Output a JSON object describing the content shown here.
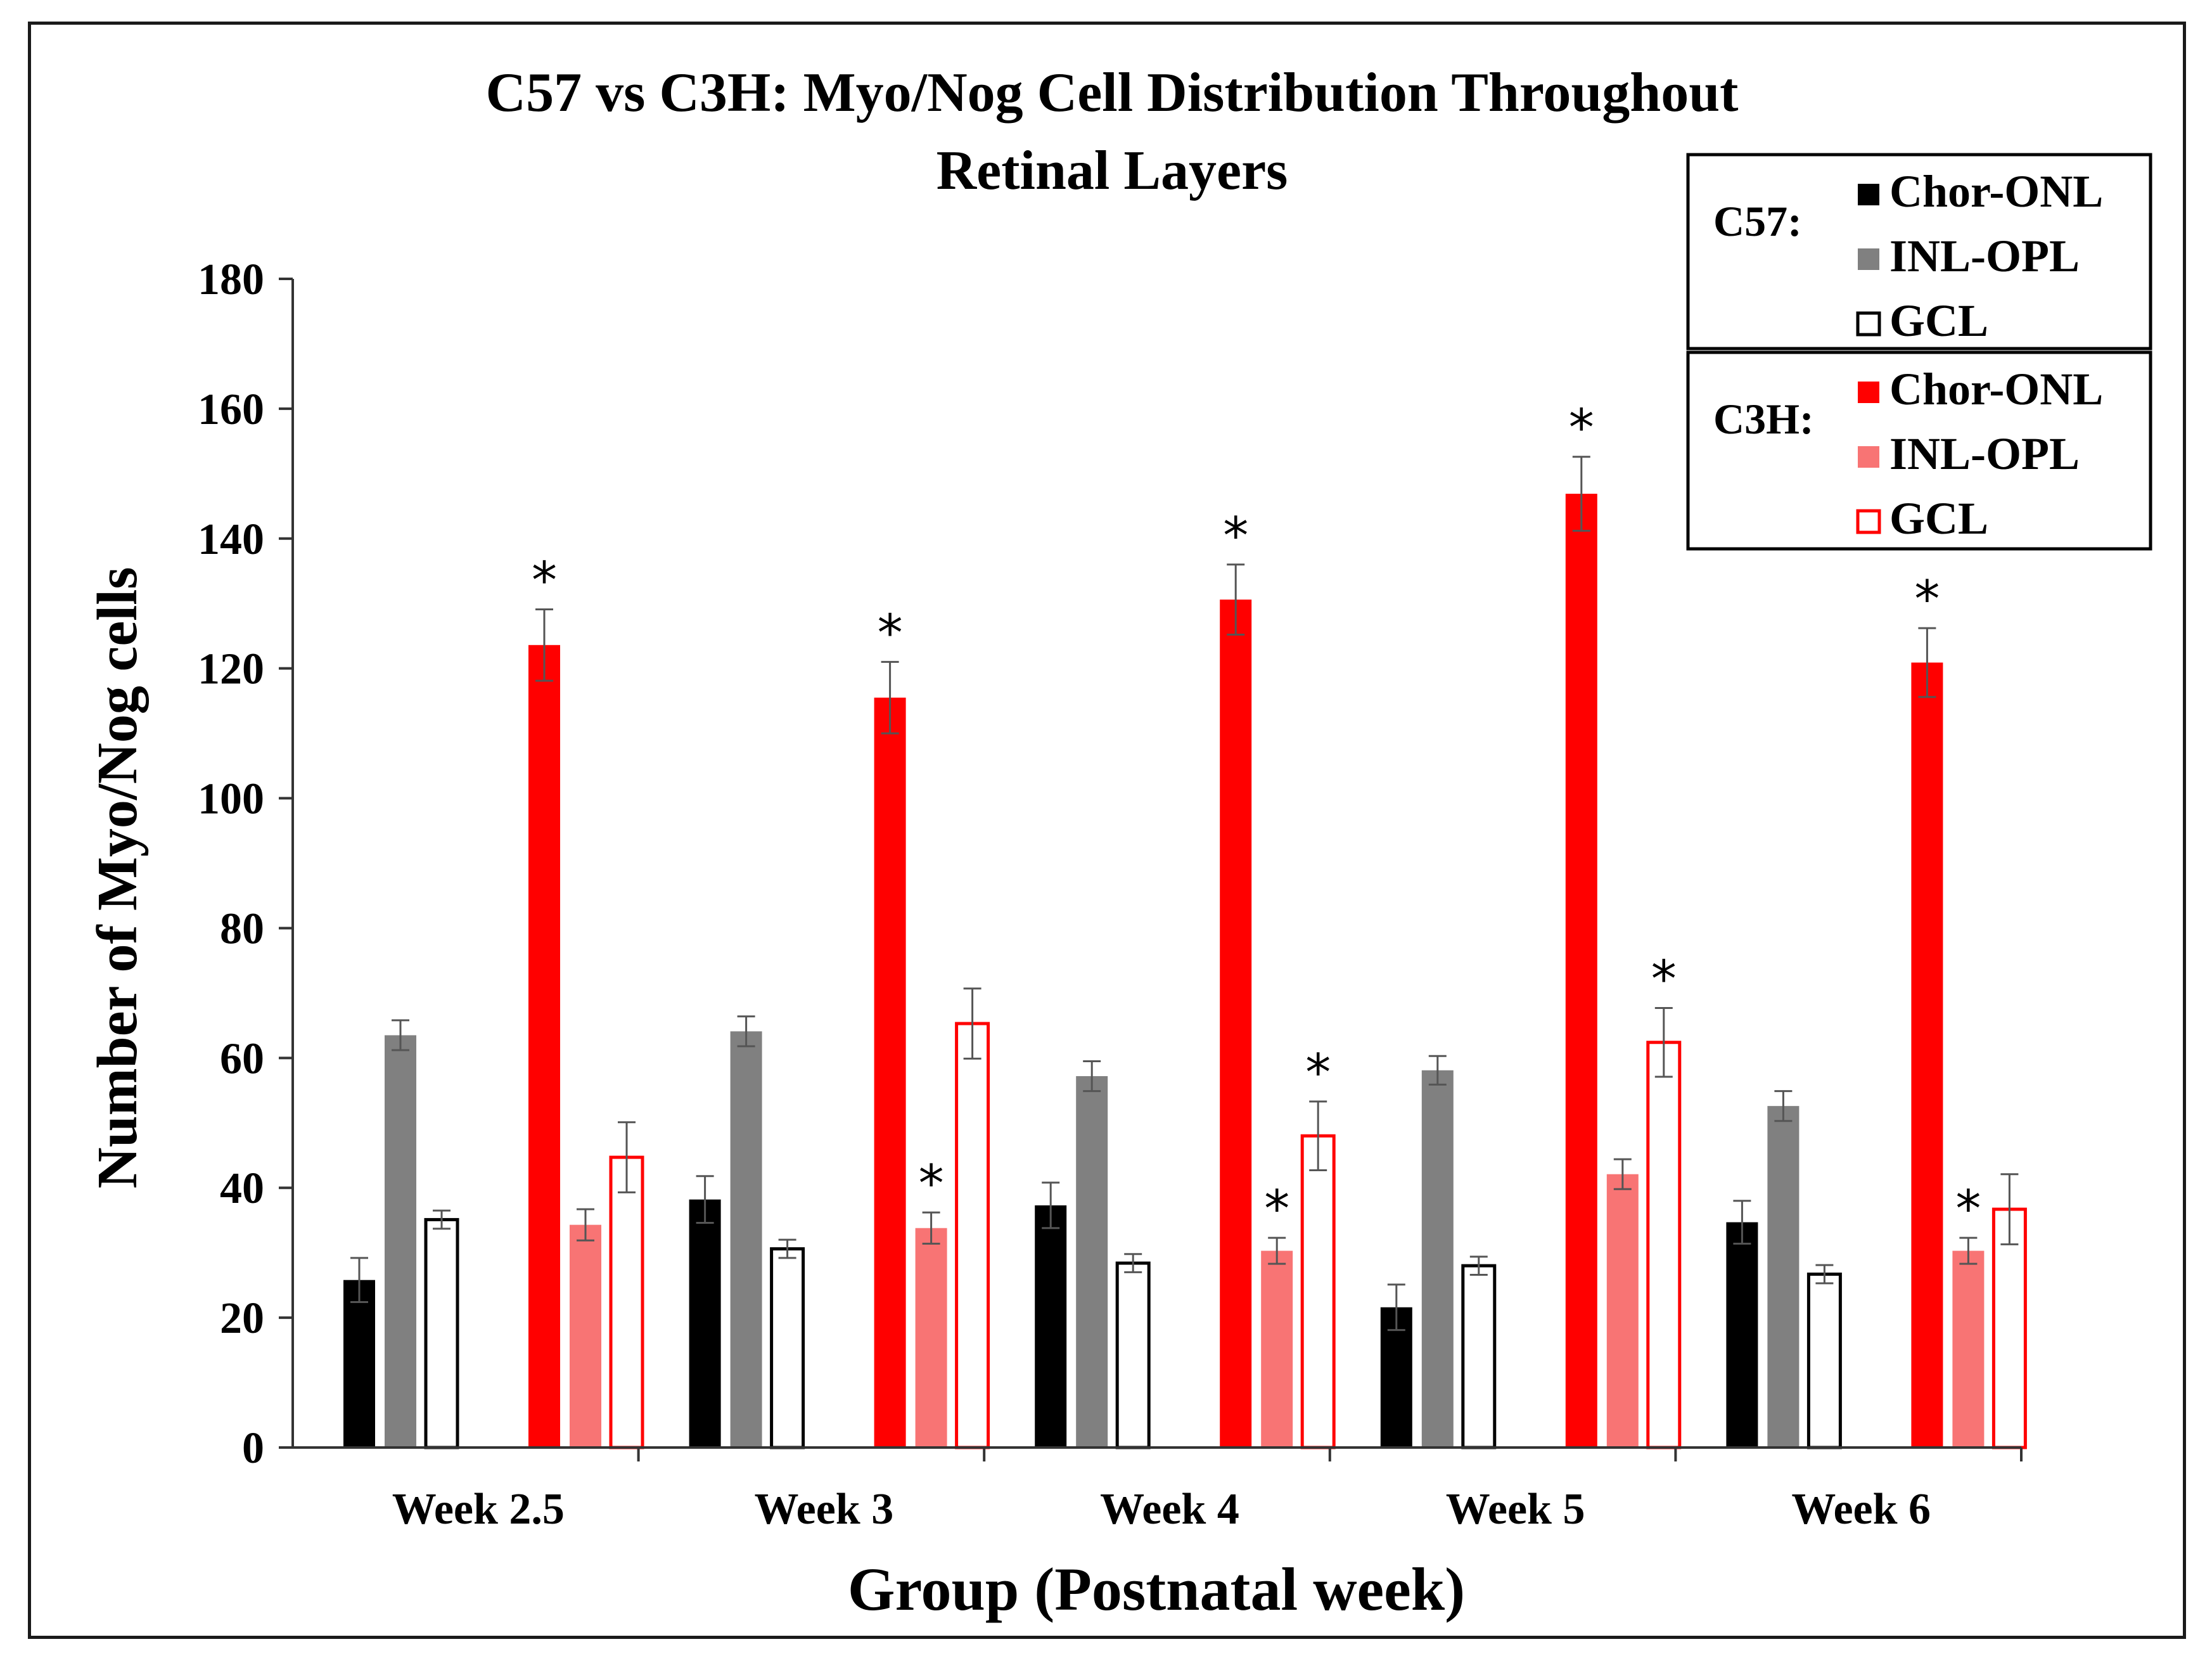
{
  "chart_data": {
    "type": "bar",
    "title_line1": "C57 vs C3H: Myo/Nog Cell Distribution Throughout",
    "title_line2": "Retinal Layers",
    "xlabel": "Group (Postnatal week)",
    "ylabel": "Number of Myo/Nog cells",
    "ylim": [
      0,
      180
    ],
    "yticks": [
      "0",
      "20",
      "40",
      "60",
      "80",
      "100",
      "120",
      "140",
      "160",
      "180"
    ],
    "categories": [
      "Week 2.5",
      "Week 3",
      "Week 4",
      "Week 5",
      "Week 6"
    ],
    "grid": false,
    "legend_position": "top-right",
    "legend_groups": [
      {
        "label": "C57:",
        "entries": [
          "Chor-ONL",
          "INL-OPL",
          "GCL"
        ]
      },
      {
        "label": "C3H:",
        "entries": [
          "Chor-ONL",
          "INL-OPL",
          "GCL"
        ]
      }
    ],
    "significance_marker": "*",
    "series": [
      {
        "strain": "C57",
        "layer": "Chor-ONL",
        "style": "filled",
        "color": "#000000",
        "values": [
          25.8,
          38.2,
          37.3,
          21.6,
          34.7
        ],
        "errors": [
          3.4,
          3.6,
          3.5,
          3.5,
          3.3
        ],
        "significant": [
          false,
          false,
          false,
          false,
          false
        ]
      },
      {
        "strain": "C57",
        "layer": "INL-OPL",
        "style": "filled",
        "color": "#808080",
        "values": [
          63.5,
          64.1,
          57.2,
          58.1,
          52.6
        ],
        "errors": [
          2.3,
          2.3,
          2.3,
          2.2,
          2.3
        ],
        "significant": [
          false,
          false,
          false,
          false,
          false
        ]
      },
      {
        "strain": "C57",
        "layer": "GCL",
        "style": "outline",
        "color": "#000000",
        "values": [
          35.1,
          30.6,
          28.4,
          28.0,
          26.7
        ],
        "errors": [
          1.4,
          1.4,
          1.4,
          1.4,
          1.4
        ],
        "significant": [
          false,
          false,
          false,
          false,
          false
        ]
      },
      {
        "strain": "C3H",
        "layer": "Chor-ONL",
        "style": "filled",
        "color": "#ff0000",
        "values": [
          123.6,
          115.5,
          130.6,
          146.9,
          120.9
        ],
        "errors": [
          5.5,
          5.5,
          5.4,
          5.7,
          5.3
        ],
        "significant": [
          true,
          true,
          true,
          true,
          true
        ]
      },
      {
        "strain": "C3H",
        "layer": "INL-OPL",
        "style": "filled",
        "color": "#f87474",
        "values": [
          34.3,
          33.8,
          30.3,
          42.1,
          30.3
        ],
        "errors": [
          2.4,
          2.4,
          2.0,
          2.3,
          2.0
        ],
        "significant": [
          false,
          true,
          true,
          false,
          true
        ]
      },
      {
        "strain": "C3H",
        "layer": "GCL",
        "style": "outline",
        "color": "#ff0000",
        "values": [
          44.7,
          65.3,
          48.0,
          62.4,
          36.7
        ],
        "errors": [
          5.4,
          5.4,
          5.3,
          5.3,
          5.4
        ],
        "significant": [
          false,
          false,
          true,
          true,
          false
        ]
      }
    ]
  }
}
